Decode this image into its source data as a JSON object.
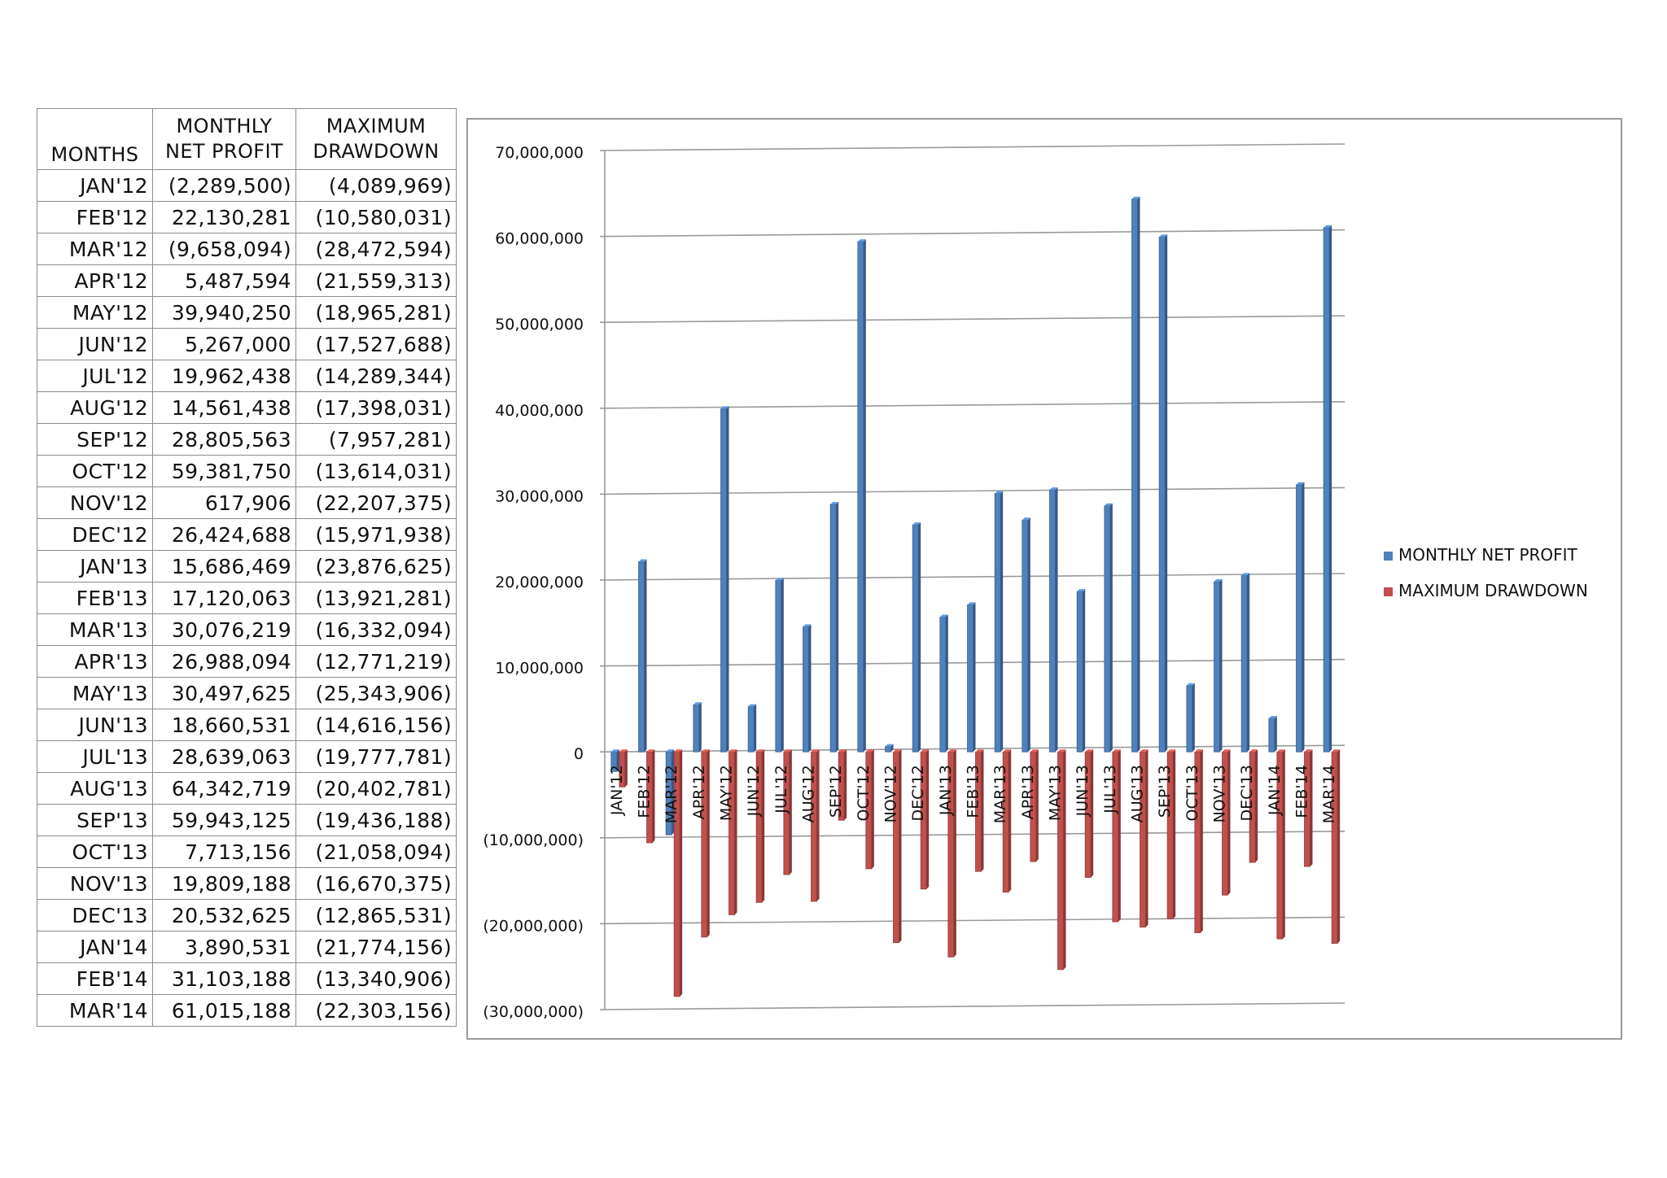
{
  "table": {
    "headers": [
      "MONTHS",
      "MONTHLY\nNET PROFIT",
      "MAXIMUM\nDRAWDOWN"
    ],
    "rows": [
      [
        "JAN'12",
        "(2,289,500)",
        "(4,089,969)"
      ],
      [
        "FEB'12",
        "22,130,281",
        "(10,580,031)"
      ],
      [
        "MAR'12",
        "(9,658,094)",
        "(28,472,594)"
      ],
      [
        "APR'12",
        "5,487,594",
        "(21,559,313)"
      ],
      [
        "MAY'12",
        "39,940,250",
        "(18,965,281)"
      ],
      [
        "JUN'12",
        "5,267,000",
        "(17,527,688)"
      ],
      [
        "JUL'12",
        "19,962,438",
        "(14,289,344)"
      ],
      [
        "AUG'12",
        "14,561,438",
        "(17,398,031)"
      ],
      [
        "SEP'12",
        "28,805,563",
        "(7,957,281)"
      ],
      [
        "OCT'12",
        "59,381,750",
        "(13,614,031)"
      ],
      [
        "NOV'12",
        "617,906",
        "(22,207,375)"
      ],
      [
        "DEC'12",
        "26,424,688",
        "(15,971,938)"
      ],
      [
        "JAN'13",
        "15,686,469",
        "(23,876,625)"
      ],
      [
        "FEB'13",
        "17,120,063",
        "(13,921,281)"
      ],
      [
        "MAR'13",
        "30,076,219",
        "(16,332,094)"
      ],
      [
        "APR'13",
        "26,988,094",
        "(12,771,219)"
      ],
      [
        "MAY'13",
        "30,497,625",
        "(25,343,906)"
      ],
      [
        "JUN'13",
        "18,660,531",
        "(14,616,156)"
      ],
      [
        "JUL'13",
        "28,639,063",
        "(19,777,781)"
      ],
      [
        "AUG'13",
        "64,342,719",
        "(20,402,781)"
      ],
      [
        "SEP'13",
        "59,943,125",
        "(19,436,188)"
      ],
      [
        "OCT'13",
        "7,713,156",
        "(21,058,094)"
      ],
      [
        "NOV'13",
        "19,809,188",
        "(16,670,375)"
      ],
      [
        "DEC'13",
        "20,532,625",
        "(12,865,531)"
      ],
      [
        "JAN'14",
        "3,890,531",
        "(21,774,156)"
      ],
      [
        "FEB'14",
        "31,103,188",
        "(13,340,906)"
      ],
      [
        "MAR'14",
        "61,015,188",
        "(22,303,156)"
      ]
    ]
  },
  "chart_data": {
    "type": "bar",
    "title": "",
    "xlabel": "",
    "ylabel": "",
    "ylim": [
      -30000000,
      70000000
    ],
    "y_ticks": [
      70000000,
      60000000,
      50000000,
      40000000,
      30000000,
      20000000,
      10000000,
      0,
      -10000000,
      -20000000,
      -30000000
    ],
    "y_tick_labels": [
      "70,000,000",
      "60,000,000",
      "50,000,000",
      "40,000,000",
      "30,000,000",
      "20,000,000",
      "10,000,000",
      "0",
      "(10,000,000)",
      "(20,000,000)",
      "(30,000,000)"
    ],
    "grid": true,
    "legend_position": "right",
    "categories": [
      "JAN'12",
      "FEB'12",
      "MAR'12",
      "APR'12",
      "MAY'12",
      "JUN'12",
      "JUL'12",
      "AUG'12",
      "SEP'12",
      "OCT'12",
      "NOV'12",
      "DEC'12",
      "JAN'13",
      "FEB'13",
      "MAR'13",
      "APR'13",
      "MAY'13",
      "JUN'13",
      "JUL'13",
      "AUG'13",
      "SEP'13",
      "OCT'13",
      "NOV'13",
      "DEC'13",
      "JAN'14",
      "FEB'14",
      "MAR'14"
    ],
    "series": [
      {
        "name": "MONTHLY NET PROFIT",
        "color": "#4f81bd",
        "values": [
          -2289500,
          22130281,
          -9658094,
          5487594,
          39940250,
          5267000,
          19962438,
          14561438,
          28805563,
          59381750,
          617906,
          26424688,
          15686469,
          17120063,
          30076219,
          26988094,
          30497625,
          18660531,
          28639063,
          64342719,
          59943125,
          7713156,
          19809188,
          20532625,
          3890531,
          31103188,
          61015188
        ]
      },
      {
        "name": "MAXIMUM DRAWDOWN",
        "color": "#c0504d",
        "values": [
          -4089969,
          -10580031,
          -28472594,
          -21559313,
          -18965281,
          -17527688,
          -14289344,
          -17398031,
          -7957281,
          -13614031,
          -22207375,
          -15971938,
          -23876625,
          -13921281,
          -16332094,
          -12771219,
          -25343906,
          -14616156,
          -19777781,
          -20402781,
          -19436188,
          -21058094,
          -16670375,
          -12865531,
          -21774156,
          -13340906,
          -22303156
        ]
      }
    ]
  }
}
